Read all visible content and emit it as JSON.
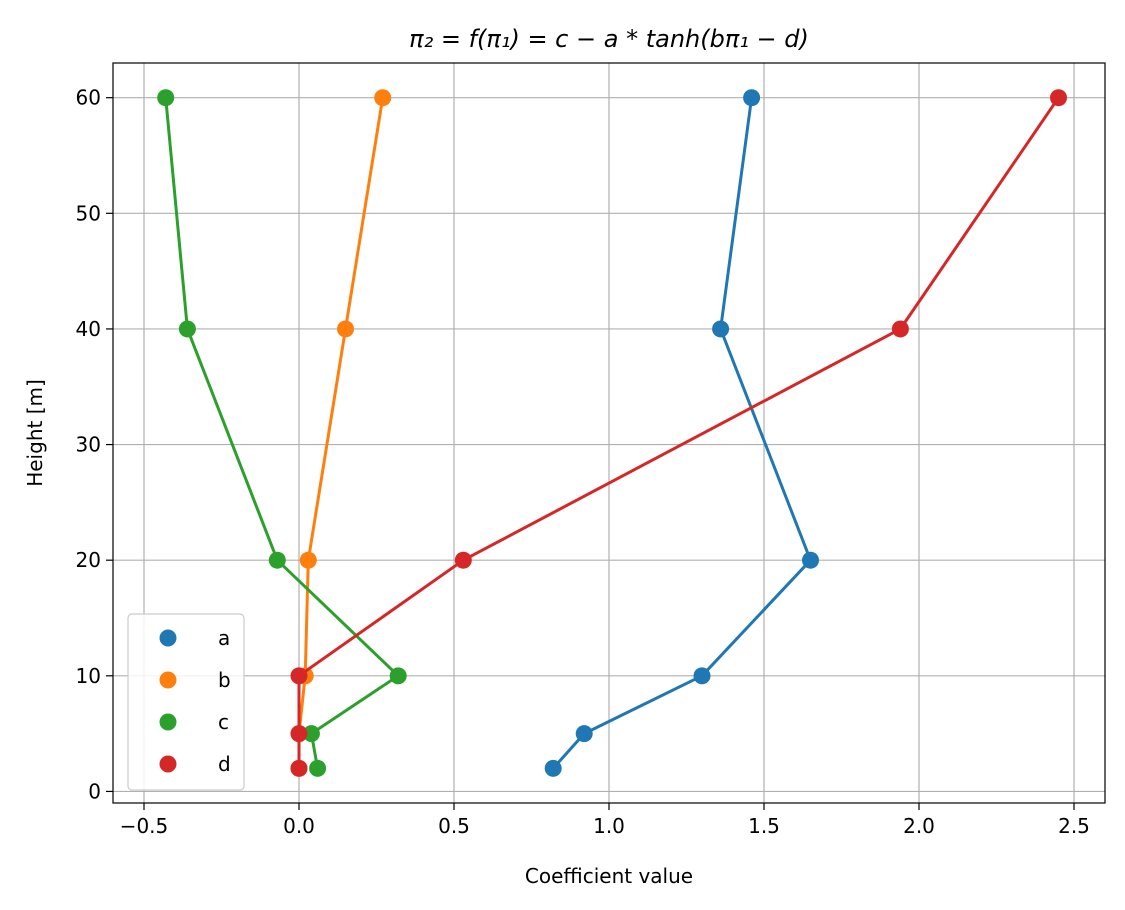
{
  "chart_data": {
    "type": "line",
    "title": "π₂ = f(π₁) = c − a * tanh(bπ₁ − d)",
    "xlabel": "Coefficient value",
    "ylabel": "Height [m]",
    "xlim": [
      -0.6,
      2.6
    ],
    "ylim": [
      -1,
      63
    ],
    "xticks": [
      -0.5,
      0.0,
      0.5,
      1.0,
      1.5,
      2.0,
      2.5
    ],
    "xtick_labels": [
      "−0.5",
      "0.0",
      "0.5",
      "1.0",
      "1.5",
      "2.0",
      "2.5"
    ],
    "yticks": [
      0,
      10,
      20,
      30,
      40,
      50,
      60
    ],
    "ytick_labels": [
      "0",
      "10",
      "20",
      "30",
      "40",
      "50",
      "60"
    ],
    "grid": true,
    "legend_position": "lower-left",
    "heights": [
      2,
      5,
      10,
      20,
      40,
      60
    ],
    "series": [
      {
        "name": "a",
        "color": "#1f77b4",
        "x": [
          0.82,
          0.92,
          1.3,
          1.65,
          1.36,
          1.46
        ]
      },
      {
        "name": "b",
        "color": "#ff7f0e",
        "x": [
          0.0,
          0.0,
          0.02,
          0.03,
          0.15,
          0.27
        ]
      },
      {
        "name": "c",
        "color": "#2ca02c",
        "x": [
          0.06,
          0.04,
          0.32,
          -0.07,
          -0.36,
          -0.43
        ]
      },
      {
        "name": "d",
        "color": "#d62728",
        "x": [
          0.0,
          0.0,
          0.0,
          0.53,
          1.94,
          2.45
        ]
      }
    ]
  }
}
